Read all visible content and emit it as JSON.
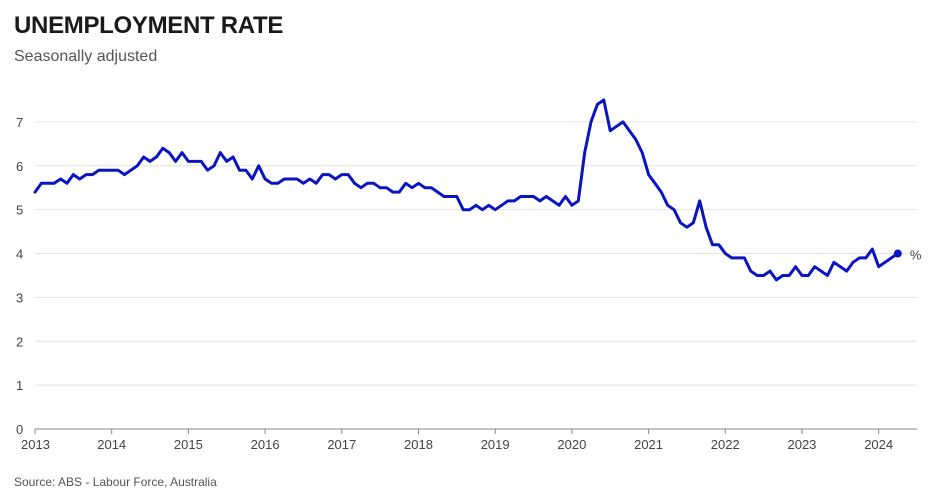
{
  "header": {
    "title": "UNEMPLOYMENT RATE",
    "subtitle": "Seasonally adjusted"
  },
  "footer": {
    "source": "Source: ABS - Labour Force, Australia"
  },
  "chart_data": {
    "type": "line",
    "title": "UNEMPLOYMENT RATE",
    "subtitle": "Seasonally adjusted",
    "xlabel": "",
    "ylabel": "",
    "unit_label": "%",
    "line_color": "#0a14c0",
    "xlim": [
      2013,
      2024.5
    ],
    "ylim": [
      0,
      7.5
    ],
    "x_ticks": [
      2013,
      2014,
      2015,
      2016,
      2017,
      2018,
      2019,
      2020,
      2021,
      2022,
      2023,
      2024
    ],
    "x_tick_labels": [
      "2013",
      "2014",
      "2015",
      "2016",
      "2017",
      "2018",
      "2019",
      "2020",
      "2021",
      "2022",
      "2023",
      "2024"
    ],
    "y_ticks": [
      0,
      1,
      2,
      3,
      4,
      5,
      6,
      7
    ],
    "y_tick_labels": [
      "0",
      "1",
      "2",
      "3",
      "4",
      "5",
      "6",
      "7"
    ],
    "grid": true,
    "end_marker": true,
    "series": [
      {
        "frequency": "monthly",
        "start": "2013-01",
        "values": [
          5.4,
          5.6,
          5.6,
          5.6,
          5.7,
          5.6,
          5.8,
          5.7,
          5.8,
          5.8,
          5.9,
          5.9,
          5.9,
          5.9,
          5.8,
          5.9,
          6.0,
          6.2,
          6.1,
          6.2,
          6.4,
          6.3,
          6.1,
          6.3,
          6.1,
          6.1,
          6.1,
          5.9,
          6.0,
          6.3,
          6.1,
          6.2,
          5.9,
          5.9,
          5.7,
          6.0,
          5.7,
          5.6,
          5.6,
          5.7,
          5.7,
          5.7,
          5.6,
          5.7,
          5.6,
          5.8,
          5.8,
          5.7,
          5.8,
          5.8,
          5.6,
          5.5,
          5.6,
          5.6,
          5.5,
          5.5,
          5.4,
          5.4,
          5.6,
          5.5,
          5.6,
          5.5,
          5.5,
          5.4,
          5.3,
          5.3,
          5.3,
          5.0,
          5.0,
          5.1,
          5.0,
          5.1,
          5.0,
          5.1,
          5.2,
          5.2,
          5.3,
          5.3,
          5.3,
          5.2,
          5.3,
          5.2,
          5.1,
          5.3,
          5.1,
          5.2,
          6.3,
          7.0,
          7.4,
          7.5,
          6.8,
          6.9,
          7.0,
          6.8,
          6.6,
          6.3,
          5.8,
          5.6,
          5.4,
          5.1,
          5.0,
          4.7,
          4.6,
          4.7,
          5.2,
          4.6,
          4.2,
          4.2,
          4.0,
          3.9,
          3.9,
          3.9,
          3.6,
          3.5,
          3.5,
          3.6,
          3.4,
          3.5,
          3.5,
          3.7,
          3.5,
          3.5,
          3.7,
          3.6,
          3.5,
          3.8,
          3.7,
          3.6,
          3.8,
          3.9,
          3.9,
          4.1,
          3.7,
          3.8,
          3.9,
          4.0
        ]
      }
    ]
  }
}
